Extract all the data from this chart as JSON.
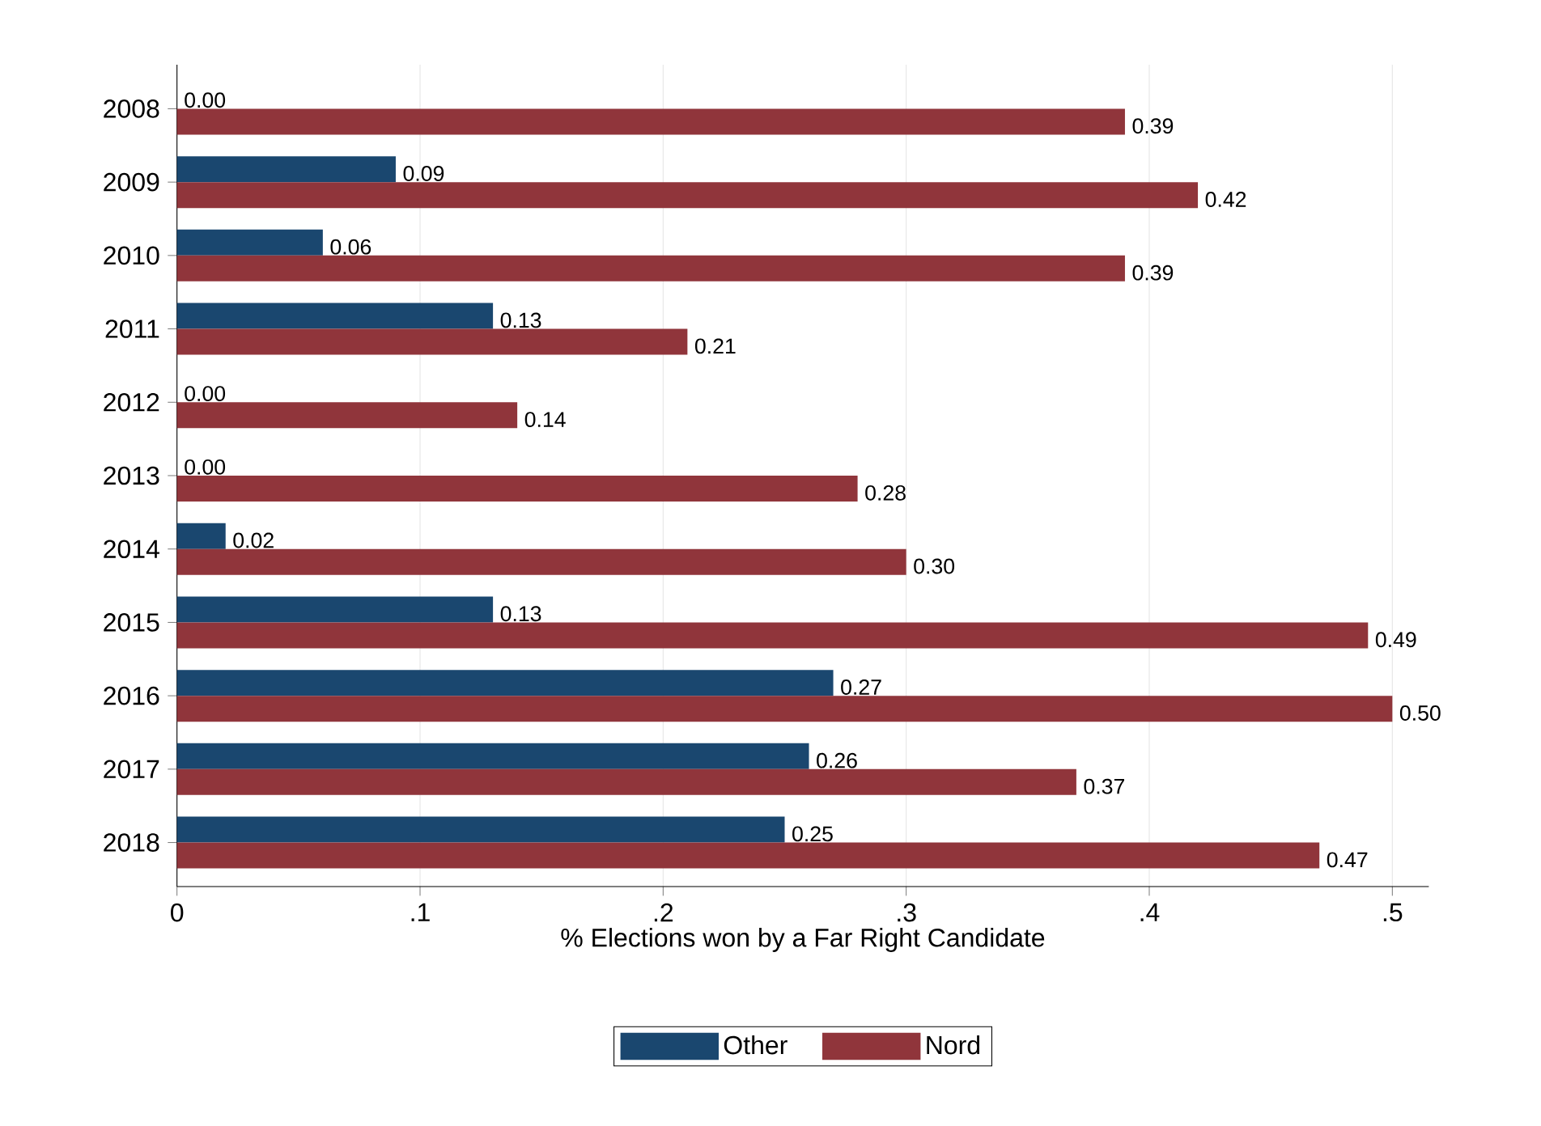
{
  "chart_data": {
    "type": "bar",
    "orientation": "horizontal",
    "xlabel": "% Elections won by a Far Right Candidate",
    "categories": [
      "2008",
      "2009",
      "2010",
      "2011",
      "2012",
      "2013",
      "2014",
      "2015",
      "2016",
      "2017",
      "2018"
    ],
    "series": [
      {
        "name": "Other",
        "color": "#1a476f",
        "values": [
          0,
          0.09,
          0.06,
          0.13,
          0,
          0,
          0.02,
          0.13,
          0.27,
          0.26,
          0.25
        ],
        "value_labels": [
          "0.00",
          "0.09",
          "0.06",
          "0.13",
          "0.00",
          "0.00",
          "0.02",
          "0.13",
          "0.27",
          "0.26",
          "0.25"
        ]
      },
      {
        "name": "Nord",
        "color": "#90353b",
        "values": [
          0.39,
          0.42,
          0.39,
          0.21,
          0.14,
          0.28,
          0.3,
          0.49,
          0.5,
          0.37,
          0.47
        ],
        "value_labels": [
          "0.39",
          "0.42",
          "0.39",
          "0.21",
          "0.14",
          "0.28",
          "0.30",
          "0.49",
          "0.50",
          "0.37",
          "0.47"
        ]
      }
    ],
    "xlim": [
      0,
      0.515
    ],
    "xticks": [
      0,
      {
        "value": 0.1,
        "label": ".1"
      },
      {
        "value": 0.2,
        "label": ".2"
      },
      {
        "value": 0.3,
        "label": ".3"
      },
      {
        "value": 0.4,
        "label": ".4"
      },
      {
        "value": 0.5,
        "label": ".5"
      }
    ],
    "grid": "x",
    "legend": "bottom"
  }
}
